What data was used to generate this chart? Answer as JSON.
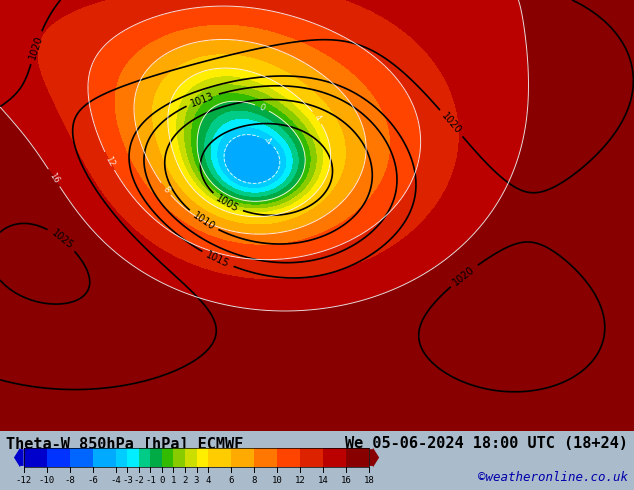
{
  "title_left": "Theta-W 850hPa [hPa] ECMWF",
  "title_right": "We 05-06-2024 18:00 UTC (18+24)",
  "credit": "©weatheronline.co.uk",
  "colorbar_levels": [
    -12,
    -10,
    -8,
    -6,
    -4,
    -3,
    -2,
    -1,
    0,
    1,
    2,
    3,
    4,
    6,
    8,
    10,
    12,
    14,
    16,
    18
  ],
  "colorbar_colors": [
    "#0000cd",
    "#0033ff",
    "#0066ff",
    "#00aaff",
    "#00ccff",
    "#00eeff",
    "#00cc88",
    "#00aa44",
    "#33bb00",
    "#88cc00",
    "#ccdd00",
    "#ffee00",
    "#ffcc00",
    "#ffaa00",
    "#ff7700",
    "#ff4400",
    "#dd2200",
    "#bb0000",
    "#880000"
  ],
  "bg_color": "#c8d8e8",
  "title_fontsize": 11,
  "credit_fontsize": 9,
  "fig_width": 6.34,
  "fig_height": 4.9
}
